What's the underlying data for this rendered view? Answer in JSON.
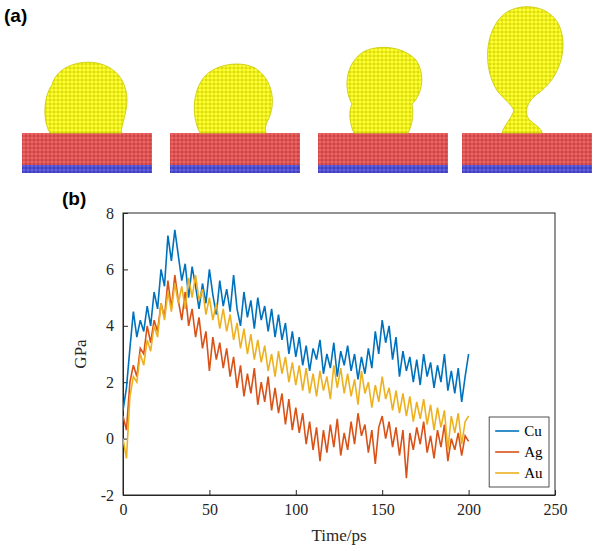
{
  "panel_a": {
    "label": "(a)"
  },
  "chart_data": {
    "type": "line",
    "label": "(b)",
    "x_label": "Time/ps",
    "y_label": "GPa",
    "xlim": [
      0,
      250
    ],
    "xticks": [
      0,
      50,
      100,
      150,
      200,
      250
    ],
    "ylim": [
      -2,
      8
    ],
    "yticks": [
      -2,
      0,
      2,
      4,
      6,
      8
    ],
    "grid": false,
    "legend": "lower right",
    "x": [
      0,
      2,
      4,
      6,
      8,
      10,
      12,
      14,
      16,
      18,
      20,
      22,
      24,
      26,
      28,
      30,
      32,
      34,
      36,
      38,
      40,
      42,
      44,
      46,
      48,
      50,
      52,
      54,
      56,
      58,
      60,
      62,
      64,
      66,
      68,
      70,
      72,
      74,
      76,
      78,
      80,
      82,
      84,
      86,
      88,
      90,
      92,
      94,
      96,
      98,
      100,
      102,
      104,
      106,
      108,
      110,
      112,
      114,
      116,
      118,
      120,
      122,
      124,
      126,
      128,
      130,
      132,
      134,
      136,
      138,
      140,
      142,
      144,
      146,
      148,
      150,
      152,
      154,
      156,
      158,
      160,
      162,
      164,
      166,
      168,
      170,
      172,
      174,
      176,
      178,
      180,
      182,
      184,
      186,
      188,
      190,
      192,
      194,
      196,
      198,
      200
    ],
    "series": [
      {
        "name": "Cu",
        "color": "#0072bd",
        "values": [
          1.0,
          1.8,
          3.2,
          4.5,
          3.6,
          4.2,
          3.8,
          4.7,
          4.0,
          5.2,
          4.6,
          6.0,
          5.4,
          7.2,
          6.3,
          7.4,
          6.5,
          5.6,
          6.2,
          5.0,
          6.1,
          5.4,
          4.6,
          5.5,
          4.8,
          6.0,
          5.1,
          4.4,
          5.6,
          4.7,
          5.3,
          4.5,
          5.8,
          4.6,
          4.0,
          5.2,
          4.3,
          4.9,
          3.9,
          5.0,
          4.2,
          4.7,
          3.8,
          4.6,
          3.6,
          4.4,
          3.5,
          4.1,
          3.0,
          3.8,
          2.9,
          3.6,
          2.6,
          3.3,
          2.4,
          3.2,
          2.8,
          3.5,
          2.3,
          3.0,
          2.5,
          3.4,
          2.2,
          3.1,
          2.6,
          3.3,
          2.4,
          3.0,
          2.1,
          2.9,
          2.3,
          3.2,
          2.5,
          3.8,
          3.0,
          4.2,
          3.4,
          4.0,
          2.8,
          3.6,
          2.2,
          3.1,
          2.4,
          2.9,
          2.0,
          2.8,
          1.9,
          3.0,
          2.2,
          2.7,
          1.8,
          2.6,
          2.0,
          3.0,
          1.7,
          2.4,
          1.6,
          2.5,
          1.3,
          2.2,
          3.0
        ]
      },
      {
        "name": "Ag",
        "color": "#d95319",
        "values": [
          0.8,
          0.3,
          2.0,
          2.6,
          2.2,
          3.2,
          3.0,
          4.0,
          3.4,
          4.2,
          3.8,
          4.8,
          4.3,
          5.6,
          4.6,
          5.8,
          4.9,
          4.2,
          5.2,
          4.0,
          4.6,
          3.6,
          4.3,
          3.2,
          3.8,
          2.4,
          3.6,
          2.8,
          3.4,
          2.5,
          3.2,
          2.2,
          2.9,
          1.8,
          2.6,
          1.5,
          2.3,
          1.6,
          2.5,
          1.2,
          2.0,
          1.3,
          2.2,
          1.0,
          1.8,
          0.9,
          1.6,
          0.5,
          1.4,
          0.3,
          1.1,
          0.2,
          0.9,
          -0.2,
          0.6,
          -0.4,
          0.4,
          -0.8,
          0.3,
          -0.5,
          0.5,
          -0.3,
          0.7,
          -0.6,
          0.2,
          -0.4,
          0.6,
          -0.2,
          0.9,
          0.1,
          0.5,
          -0.5,
          0.3,
          -0.9,
          0.4,
          0.8,
          0.0,
          0.6,
          -0.3,
          0.4,
          -0.6,
          0.3,
          -1.4,
          0.2,
          -0.4,
          0.4,
          -0.2,
          0.6,
          -0.5,
          0.1,
          -0.7,
          0.3,
          -0.3,
          0.5,
          -0.8,
          0.0,
          -0.4,
          0.2,
          -0.6,
          0.1,
          -0.1
        ]
      },
      {
        "name": "Au",
        "color": "#edb120",
        "values": [
          0.0,
          -0.7,
          1.5,
          2.2,
          2.0,
          3.0,
          2.6,
          3.5,
          3.1,
          4.0,
          3.6,
          4.8,
          4.2,
          5.2,
          4.5,
          5.5,
          4.8,
          5.4,
          4.6,
          5.7,
          5.0,
          5.8,
          4.9,
          5.3,
          4.4,
          5.0,
          4.2,
          4.8,
          3.9,
          4.6,
          3.8,
          4.4,
          3.5,
          4.1,
          3.2,
          3.9,
          3.0,
          3.7,
          2.8,
          3.5,
          2.7,
          3.3,
          2.4,
          3.0,
          2.2,
          3.1,
          2.3,
          2.9,
          2.0,
          2.7,
          1.9,
          2.6,
          1.7,
          2.5,
          1.6,
          2.3,
          1.5,
          2.4,
          1.7,
          2.2,
          1.4,
          2.6,
          1.8,
          2.5,
          1.6,
          2.3,
          1.5,
          2.1,
          1.2,
          2.4,
          1.6,
          2.0,
          1.1,
          1.9,
          1.3,
          2.2,
          1.4,
          1.8,
          1.0,
          1.7,
          0.9,
          1.6,
          0.8,
          1.5,
          0.6,
          1.3,
          0.7,
          1.4,
          0.5,
          1.2,
          0.3,
          1.1,
          0.4,
          1.0,
          -0.4,
          0.8,
          0.2,
          0.9,
          -0.2,
          0.6,
          0.8
        ]
      }
    ]
  }
}
